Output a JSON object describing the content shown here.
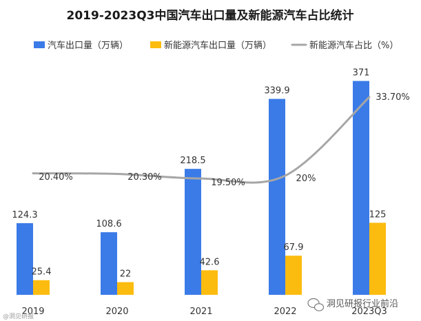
{
  "chart_data": {
    "type": "bar",
    "title": "2019-2023Q3中国汽车出口量及新能源汽车占比统计",
    "categories": [
      "2019",
      "2020",
      "2021",
      "2022",
      "2023Q3"
    ],
    "series": [
      {
        "name": "汽车出口量（万辆）",
        "kind": "bar",
        "color": "#3b7be8",
        "values": [
          124.3,
          108.6,
          218.5,
          339.9,
          371
        ],
        "labels": [
          "124.3",
          "108.6",
          "218.5",
          "339.9",
          "371"
        ]
      },
      {
        "name": "新能源汽车出口量（万辆）",
        "kind": "bar",
        "color": "#fcbc0f",
        "values": [
          25.4,
          22,
          42.6,
          67.9,
          125
        ],
        "labels": [
          "25.4",
          "22",
          "42.6",
          "67.9",
          "125"
        ]
      },
      {
        "name": "新能源汽车占比（%）",
        "kind": "line",
        "color": "#a6a6a6",
        "values": [
          20.4,
          20.3,
          19.5,
          20,
          33.7
        ],
        "labels": [
          "20.40%",
          "20.30%",
          "19.50%",
          "20%",
          "33.70%"
        ]
      }
    ],
    "ylim": [
      0,
      380
    ],
    "xlabel": "",
    "ylabel": "",
    "legend": "top"
  },
  "watermark": {
    "text": "洞见研报行业前沿",
    "small_text": "@洞见研报"
  }
}
